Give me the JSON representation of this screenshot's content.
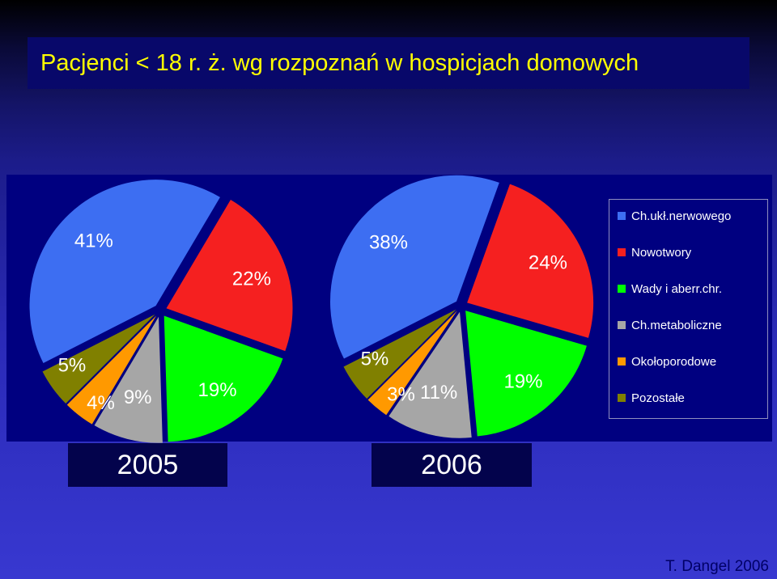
{
  "title": "Pacjenci < 18 r. ż. wg rozpoznań w hospicjach domowych",
  "credit": "T. Dangel 2006",
  "colors": {
    "background_top": "#000000",
    "background_bottom": "#3838d0",
    "chart_band": "#000080",
    "title_text": "#ffff00",
    "label_text": "#ffffff"
  },
  "legend": [
    {
      "label": "Ch.ukł.nerwowego",
      "color": "#3d6ef2"
    },
    {
      "label": "Nowotwory",
      "color": "#f52020"
    },
    {
      "label": "Wady i aberr.chr.",
      "color": "#00ff00"
    },
    {
      "label": "Ch.metaboliczne",
      "color": "#a6a6a6"
    },
    {
      "label": "Okołoporodowe",
      "color": "#ff9900"
    },
    {
      "label": "Pozostałe",
      "color": "#808000"
    }
  ],
  "chart_data": [
    {
      "type": "pie",
      "year_label": "2005",
      "exploded": true,
      "slices": [
        {
          "category": "Ch.ukł.nerwowego",
          "value": 41,
          "label": "41%"
        },
        {
          "category": "Nowotwory",
          "value": 22,
          "label": "22%"
        },
        {
          "category": "Wady i aberr.chr.",
          "value": 19,
          "label": "19%"
        },
        {
          "category": "Ch.metaboliczne",
          "value": 9,
          "label": "9%"
        },
        {
          "category": "Okołoporodowe",
          "value": 4,
          "label": "4%"
        },
        {
          "category": "Pozostałe",
          "value": 5,
          "label": "5%"
        }
      ]
    },
    {
      "type": "pie",
      "year_label": "2006",
      "exploded": true,
      "slices": [
        {
          "category": "Ch.ukł.nerwowego",
          "value": 38,
          "label": "38%"
        },
        {
          "category": "Nowotwory",
          "value": 24,
          "label": "24%"
        },
        {
          "category": "Wady i aberr.chr.",
          "value": 19,
          "label": "19%"
        },
        {
          "category": "Ch.metaboliczne",
          "value": 11,
          "label": "11%"
        },
        {
          "category": "Okołoporodowe",
          "value": 3,
          "label": "3%"
        },
        {
          "category": "Pozostałe",
          "value": 5,
          "label": "5%"
        }
      ]
    }
  ]
}
